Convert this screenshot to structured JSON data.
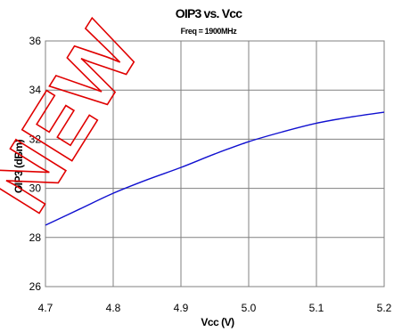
{
  "watermark": "NEW",
  "chart_data": {
    "type": "line",
    "title": "OIP3 vs. Vcc",
    "subtitle": "Freq = 1900MHz",
    "xlabel": "Vcc (V)",
    "ylabel": "OIP3 (dBm)",
    "xlim": [
      4.7,
      5.2
    ],
    "ylim": [
      26,
      36
    ],
    "xticks": [
      "4.7",
      "4.8",
      "4.9",
      "5.0",
      "5.1",
      "5.2"
    ],
    "yticks": [
      "26",
      "28",
      "30",
      "32",
      "34",
      "36"
    ],
    "grid": true,
    "legend": "none",
    "line_color": "#1010d0",
    "series": [
      {
        "x": [
          4.7,
          4.75,
          4.8,
          4.85,
          4.9,
          4.95,
          5.0,
          5.05,
          5.1,
          5.15,
          5.2
        ],
        "values": [
          28.5,
          29.15,
          29.8,
          30.35,
          30.85,
          31.4,
          31.9,
          32.3,
          32.65,
          32.9,
          33.1
        ]
      }
    ]
  }
}
